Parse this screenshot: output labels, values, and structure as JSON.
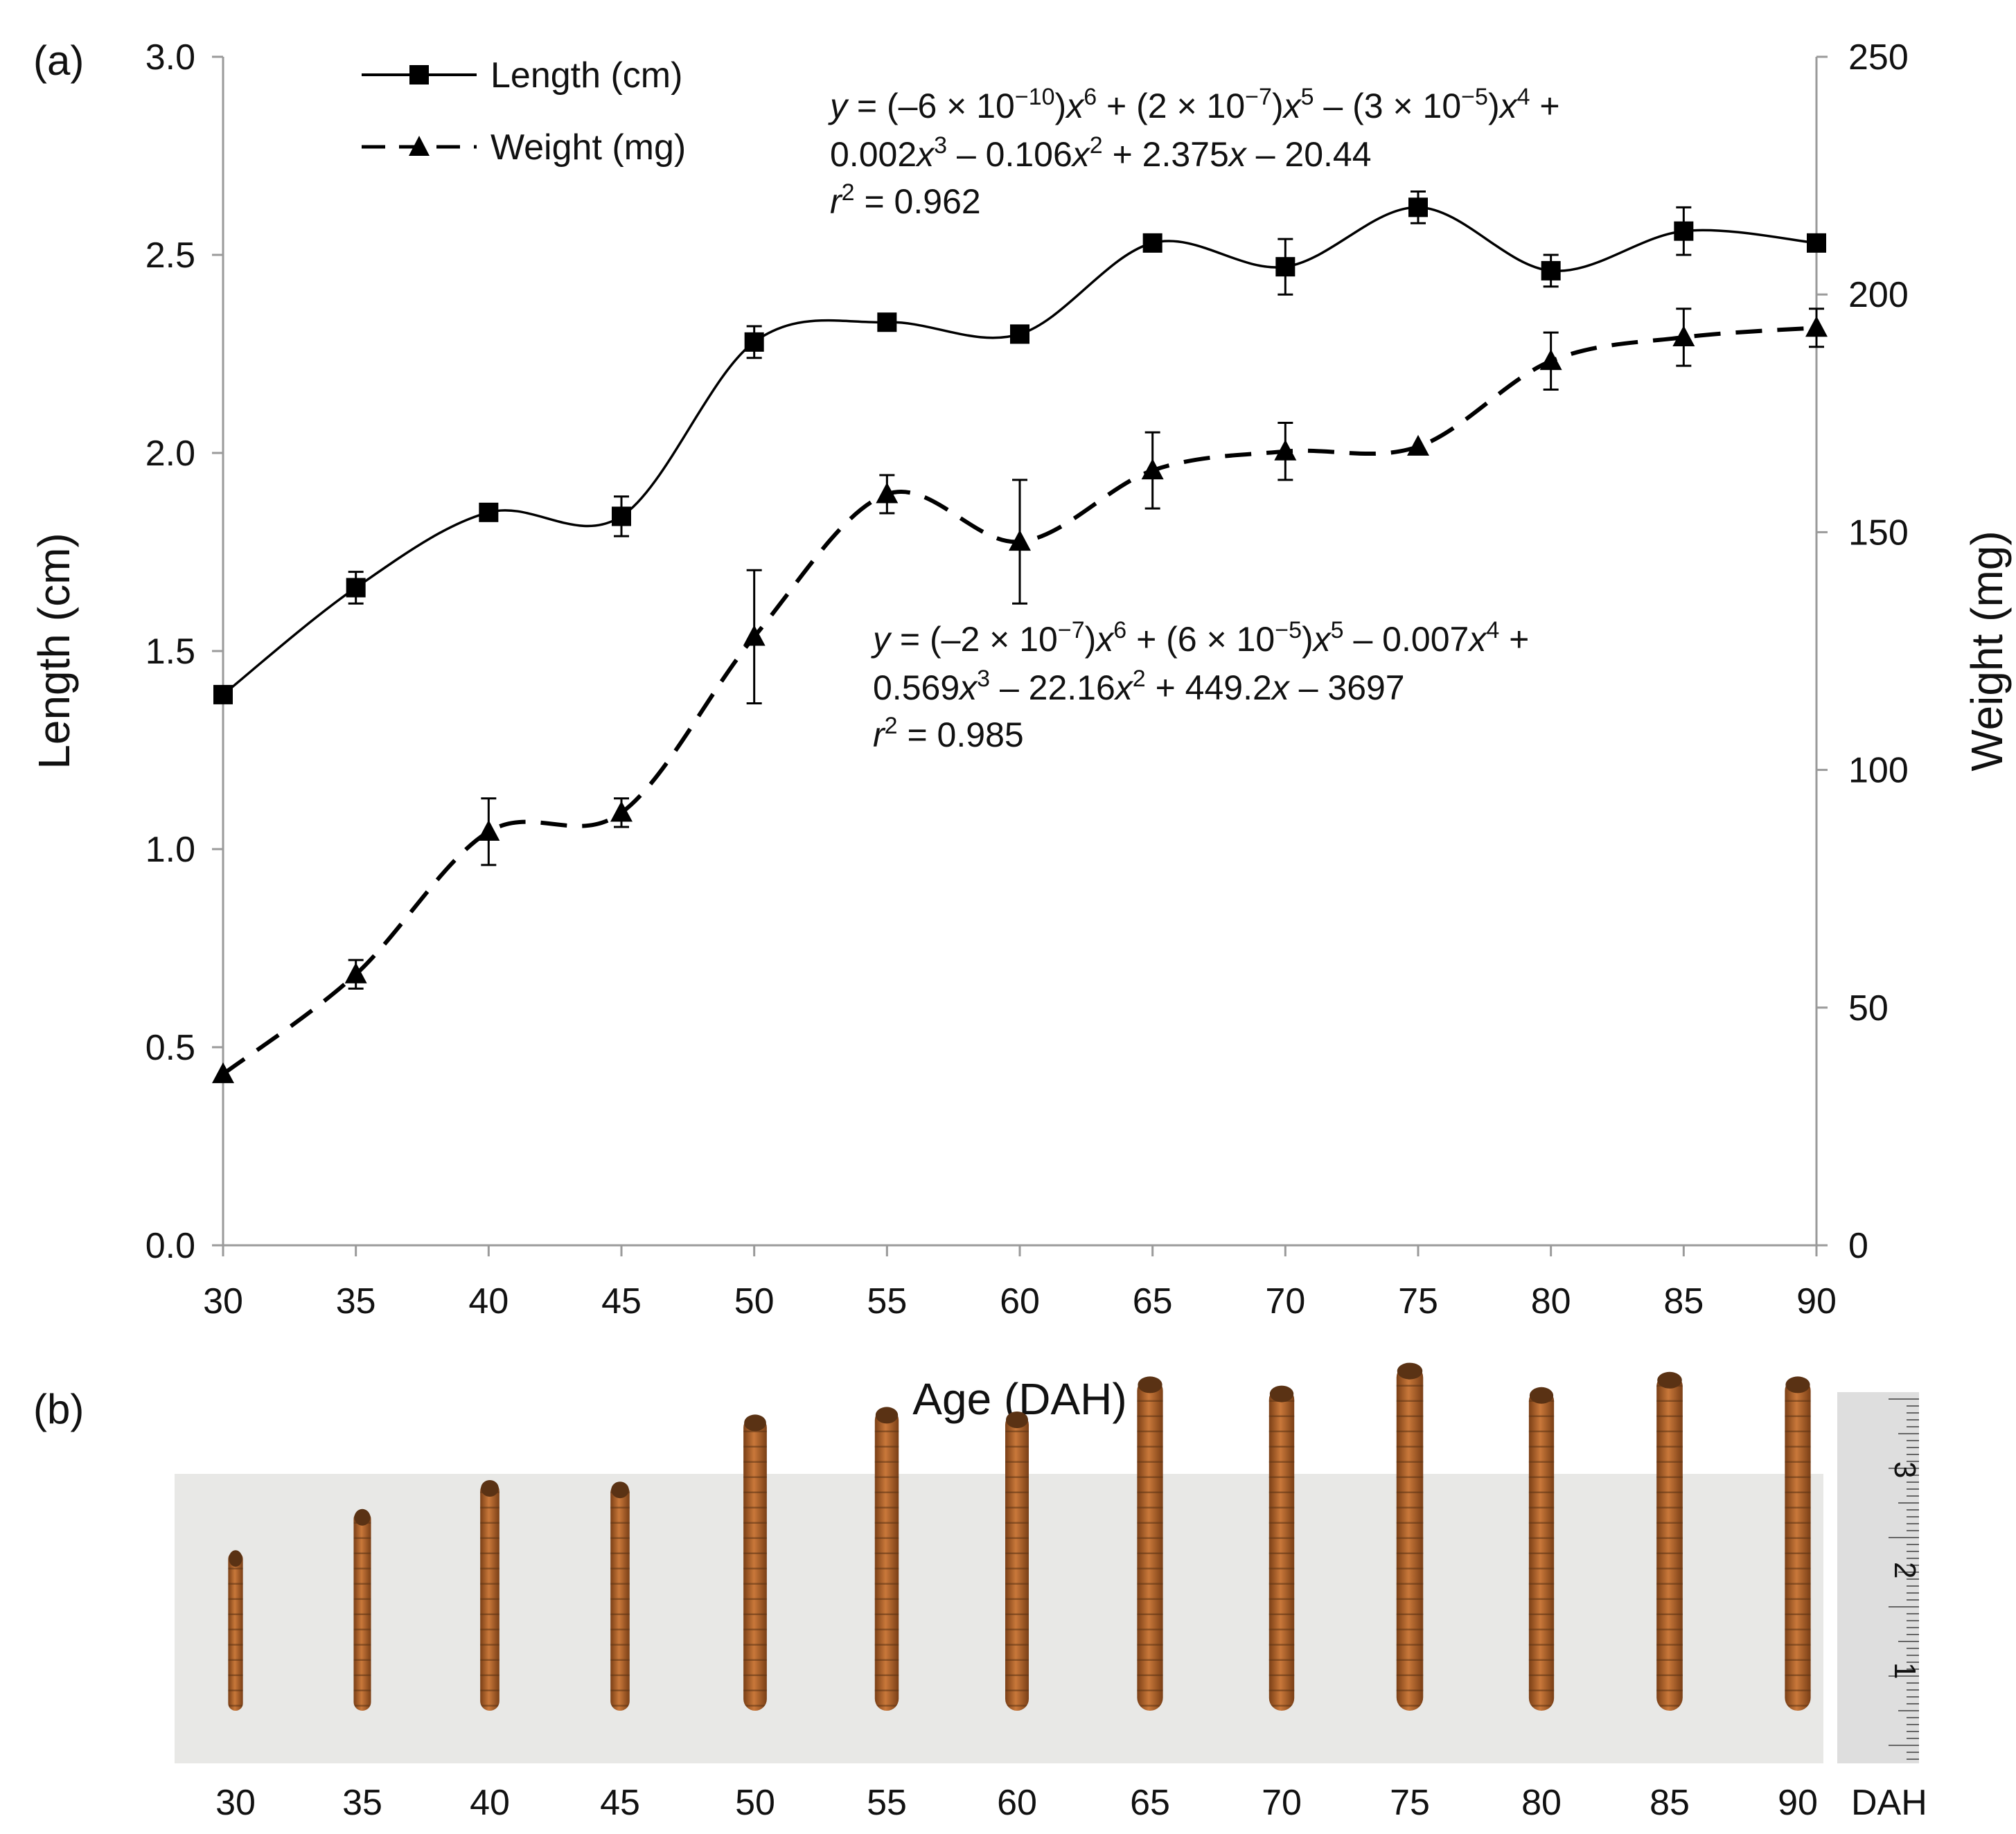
{
  "chart_data": [
    {
      "panel": "(a)",
      "type": "line",
      "xlabel": "Age (DAH)",
      "ylabel_left": "Length (cm)",
      "ylabel_right": "Weight (mg)",
      "x": [
        30,
        35,
        40,
        45,
        50,
        55,
        60,
        65,
        70,
        75,
        80,
        85,
        90
      ],
      "x_ticks": [
        "30",
        "35",
        "40",
        "45",
        "50",
        "55",
        "60",
        "65",
        "70",
        "75",
        "80",
        "85",
        "90"
      ],
      "xlim": [
        30,
        90
      ],
      "ylim_left": [
        0,
        3.0
      ],
      "ylim_right": [
        0,
        250
      ],
      "y_ticks_left": [
        "0.0",
        "0.5",
        "1.0",
        "1.5",
        "2.0",
        "2.5",
        "3.0"
      ],
      "y_ticks_right": [
        "0",
        "50",
        "100",
        "150",
        "200",
        "250"
      ],
      "legend_position": "top-left",
      "series": [
        {
          "name": "Length (cm)",
          "axis": "left",
          "style": "solid",
          "marker": "square",
          "values": [
            1.39,
            1.66,
            1.85,
            1.84,
            2.28,
            2.33,
            2.3,
            2.53,
            2.47,
            2.62,
            2.46,
            2.56,
            2.53
          ],
          "errors": [
            0.0,
            0.04,
            0.0,
            0.05,
            0.04,
            0.0,
            0.0,
            0.0,
            0.07,
            0.04,
            0.04,
            0.06,
            0.0
          ]
        },
        {
          "name": "Weight (mg)",
          "axis": "right",
          "style": "dashed",
          "marker": "triangle",
          "values": [
            36,
            57,
            87,
            91,
            128,
            158,
            148,
            163,
            167,
            168,
            186,
            191,
            193
          ],
          "errors": [
            0,
            3,
            7,
            3,
            14,
            4,
            13,
            8,
            6,
            0,
            6,
            6,
            4
          ]
        }
      ],
      "annotations": {
        "length_fit": {
          "line1": [
            "y",
            " = (–6 × 10",
            "−10",
            ")",
            "x",
            "6",
            "  + (2 × 10",
            "−7",
            ")",
            "x",
            "5",
            " – (3 × 10",
            "−5",
            ")",
            "x",
            "4",
            " +"
          ],
          "line2": [
            "0.002",
            "x",
            "3",
            " – 0.106",
            "x",
            "2",
            " + 2.375",
            "x",
            " – 20.44"
          ],
          "r2_label": "r",
          "r2_sup": "2",
          "r2_value": " = 0.962"
        },
        "weight_fit": {
          "line1": [
            "y",
            " = (–2 × 10",
            "−7",
            ")",
            "x",
            "6",
            "  + (6 × 10",
            "−5",
            ")",
            "x",
            "5",
            " – 0.007",
            "x",
            "4",
            " +"
          ],
          "line2": [
            "0.569",
            "x",
            "3",
            " – 22.16",
            "x",
            "2",
            " + 449.2",
            "x",
            " – 3697"
          ],
          "r2_label": "r",
          "r2_sup": "2",
          "r2_value": " = 0.985"
        }
      }
    },
    {
      "panel": "(b)",
      "type": "photo-strip",
      "labels": [
        "30",
        "35",
        "40",
        "45",
        "50",
        "55",
        "60",
        "65",
        "70",
        "75",
        "80",
        "85",
        "90"
      ],
      "unit_label": "DAH",
      "ruler_labels": [
        "3",
        "2",
        "1"
      ],
      "colors": {
        "background": "#e6e6e4",
        "larva_body": "#b5652a",
        "larva_dark": "#5a3214",
        "ruler": "#dcdcdc"
      }
    }
  ]
}
